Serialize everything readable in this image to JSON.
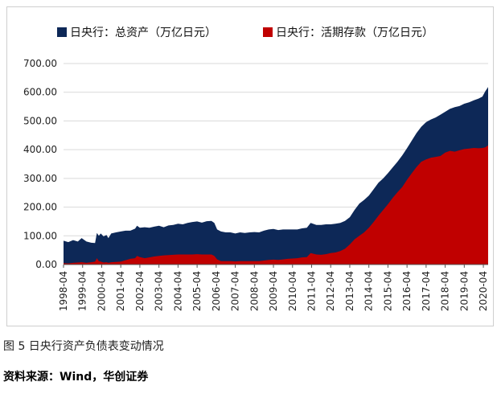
{
  "chart_data": {
    "type": "area",
    "title": "",
    "xlabel": "",
    "ylabel": "",
    "ylim": [
      0,
      700
    ],
    "y_ticks": [
      "0.00",
      "100.00",
      "200.00",
      "300.00",
      "400.00",
      "500.00",
      "600.00",
      "700.00"
    ],
    "x_ticks": [
      "1998-04",
      "1999-04",
      "2000-04",
      "2001-04",
      "2002-04",
      "2003-04",
      "2004-04",
      "2005-04",
      "2006-04",
      "2007-04",
      "2008-04",
      "2009-04",
      "2010-04",
      "2011-04",
      "2012-04",
      "2013-04",
      "2014-04",
      "2015-04",
      "2016-04",
      "2017-04",
      "2018-04",
      "2019-04",
      "2020-04"
    ],
    "x_start": 1998.25,
    "x_end": 2020.5,
    "grid": true,
    "legend_position": "top",
    "series": [
      {
        "name": "日央行：总资产（万亿日元）",
        "color": "#0d2857",
        "points": [
          [
            1998.25,
            83
          ],
          [
            1998.5,
            78
          ],
          [
            1998.75,
            85
          ],
          [
            1999.0,
            80
          ],
          [
            1999.2,
            92
          ],
          [
            1999.45,
            80
          ],
          [
            1999.7,
            76
          ],
          [
            1999.9,
            75
          ],
          [
            2000.0,
            110
          ],
          [
            2000.1,
            100
          ],
          [
            2000.2,
            108
          ],
          [
            2000.35,
            98
          ],
          [
            2000.5,
            103
          ],
          [
            2000.6,
            92
          ],
          [
            2000.75,
            108
          ],
          [
            2001.0,
            112
          ],
          [
            2001.25,
            115
          ],
          [
            2001.5,
            118
          ],
          [
            2001.75,
            118
          ],
          [
            2002.0,
            125
          ],
          [
            2002.1,
            135
          ],
          [
            2002.25,
            128
          ],
          [
            2002.5,
            130
          ],
          [
            2002.75,
            128
          ],
          [
            2003.0,
            132
          ],
          [
            2003.25,
            135
          ],
          [
            2003.5,
            130
          ],
          [
            2003.75,
            136
          ],
          [
            2004.0,
            138
          ],
          [
            2004.25,
            142
          ],
          [
            2004.5,
            140
          ],
          [
            2004.75,
            145
          ],
          [
            2005.0,
            148
          ],
          [
            2005.25,
            150
          ],
          [
            2005.5,
            146
          ],
          [
            2005.75,
            151
          ],
          [
            2006.0,
            152
          ],
          [
            2006.15,
            145
          ],
          [
            2006.3,
            122
          ],
          [
            2006.5,
            115
          ],
          [
            2006.75,
            112
          ],
          [
            2007.0,
            112
          ],
          [
            2007.25,
            108
          ],
          [
            2007.5,
            112
          ],
          [
            2007.75,
            110
          ],
          [
            2008.0,
            112
          ],
          [
            2008.25,
            113
          ],
          [
            2008.5,
            112
          ],
          [
            2008.75,
            118
          ],
          [
            2009.0,
            122
          ],
          [
            2009.25,
            124
          ],
          [
            2009.5,
            120
          ],
          [
            2009.75,
            122
          ],
          [
            2010.0,
            122
          ],
          [
            2010.25,
            122
          ],
          [
            2010.5,
            122
          ],
          [
            2010.75,
            126
          ],
          [
            2011.0,
            128
          ],
          [
            2011.2,
            145
          ],
          [
            2011.5,
            138
          ],
          [
            2011.75,
            138
          ],
          [
            2012.0,
            140
          ],
          [
            2012.25,
            140
          ],
          [
            2012.5,
            142
          ],
          [
            2012.75,
            145
          ],
          [
            2013.0,
            152
          ],
          [
            2013.25,
            165
          ],
          [
            2013.5,
            190
          ],
          [
            2013.75,
            212
          ],
          [
            2014.0,
            225
          ],
          [
            2014.25,
            240
          ],
          [
            2014.5,
            262
          ],
          [
            2014.75,
            285
          ],
          [
            2015.0,
            300
          ],
          [
            2015.25,
            318
          ],
          [
            2015.5,
            338
          ],
          [
            2015.75,
            358
          ],
          [
            2016.0,
            380
          ],
          [
            2016.25,
            405
          ],
          [
            2016.5,
            432
          ],
          [
            2016.75,
            458
          ],
          [
            2017.0,
            480
          ],
          [
            2017.25,
            496
          ],
          [
            2017.5,
            505
          ],
          [
            2017.75,
            512
          ],
          [
            2018.0,
            522
          ],
          [
            2018.25,
            532
          ],
          [
            2018.5,
            542
          ],
          [
            2018.75,
            548
          ],
          [
            2019.0,
            552
          ],
          [
            2019.25,
            560
          ],
          [
            2019.5,
            565
          ],
          [
            2019.75,
            572
          ],
          [
            2020.0,
            578
          ],
          [
            2020.2,
            585
          ],
          [
            2020.35,
            603
          ],
          [
            2020.5,
            618
          ]
        ]
      },
      {
        "name": "日央行：活期存款（万亿日元）",
        "color": "#c00000",
        "points": [
          [
            1998.25,
            5
          ],
          [
            1998.5,
            4
          ],
          [
            1998.75,
            6
          ],
          [
            1999.0,
            7
          ],
          [
            1999.2,
            8
          ],
          [
            1999.45,
            6
          ],
          [
            1999.7,
            8
          ],
          [
            1999.9,
            10
          ],
          [
            2000.0,
            22
          ],
          [
            2000.1,
            12
          ],
          [
            2000.2,
            10
          ],
          [
            2000.35,
            7
          ],
          [
            2000.5,
            8
          ],
          [
            2000.6,
            6
          ],
          [
            2000.75,
            8
          ],
          [
            2001.0,
            9
          ],
          [
            2001.25,
            10
          ],
          [
            2001.5,
            15
          ],
          [
            2001.75,
            20
          ],
          [
            2002.0,
            22
          ],
          [
            2002.1,
            30
          ],
          [
            2002.25,
            26
          ],
          [
            2002.5,
            22
          ],
          [
            2002.75,
            25
          ],
          [
            2003.0,
            28
          ],
          [
            2003.25,
            30
          ],
          [
            2003.5,
            32
          ],
          [
            2003.75,
            33
          ],
          [
            2004.0,
            34
          ],
          [
            2004.25,
            35
          ],
          [
            2004.5,
            35
          ],
          [
            2004.75,
            35
          ],
          [
            2005.0,
            35
          ],
          [
            2005.25,
            36
          ],
          [
            2005.5,
            35
          ],
          [
            2005.75,
            35
          ],
          [
            2006.0,
            35
          ],
          [
            2006.15,
            30
          ],
          [
            2006.3,
            18
          ],
          [
            2006.5,
            12
          ],
          [
            2006.75,
            12
          ],
          [
            2007.0,
            12
          ],
          [
            2007.25,
            11
          ],
          [
            2007.5,
            12
          ],
          [
            2007.75,
            12
          ],
          [
            2008.0,
            12
          ],
          [
            2008.25,
            12
          ],
          [
            2008.5,
            12
          ],
          [
            2008.75,
            14
          ],
          [
            2009.0,
            16
          ],
          [
            2009.25,
            17
          ],
          [
            2009.5,
            16
          ],
          [
            2009.75,
            18
          ],
          [
            2010.0,
            20
          ],
          [
            2010.25,
            21
          ],
          [
            2010.5,
            22
          ],
          [
            2010.75,
            25
          ],
          [
            2011.0,
            26
          ],
          [
            2011.2,
            40
          ],
          [
            2011.5,
            35
          ],
          [
            2011.75,
            34
          ],
          [
            2012.0,
            36
          ],
          [
            2012.25,
            40
          ],
          [
            2012.5,
            42
          ],
          [
            2012.75,
            47
          ],
          [
            2013.0,
            55
          ],
          [
            2013.25,
            70
          ],
          [
            2013.5,
            88
          ],
          [
            2013.75,
            100
          ],
          [
            2014.0,
            112
          ],
          [
            2014.25,
            128
          ],
          [
            2014.5,
            148
          ],
          [
            2014.75,
            170
          ],
          [
            2015.0,
            190
          ],
          [
            2015.25,
            210
          ],
          [
            2015.5,
            232
          ],
          [
            2015.75,
            252
          ],
          [
            2016.0,
            270
          ],
          [
            2016.25,
            295
          ],
          [
            2016.5,
            318
          ],
          [
            2016.75,
            340
          ],
          [
            2017.0,
            358
          ],
          [
            2017.25,
            366
          ],
          [
            2017.5,
            372
          ],
          [
            2017.75,
            375
          ],
          [
            2018.0,
            378
          ],
          [
            2018.25,
            390
          ],
          [
            2018.5,
            396
          ],
          [
            2018.75,
            393
          ],
          [
            2019.0,
            398
          ],
          [
            2019.25,
            402
          ],
          [
            2019.5,
            404
          ],
          [
            2019.75,
            406
          ],
          [
            2020.0,
            405
          ],
          [
            2020.2,
            406
          ],
          [
            2020.35,
            408
          ],
          [
            2020.5,
            415
          ]
        ]
      }
    ]
  },
  "caption": "图 5   日央行资产负债表变动情况",
  "source": "资料来源：Wind，华创证券"
}
